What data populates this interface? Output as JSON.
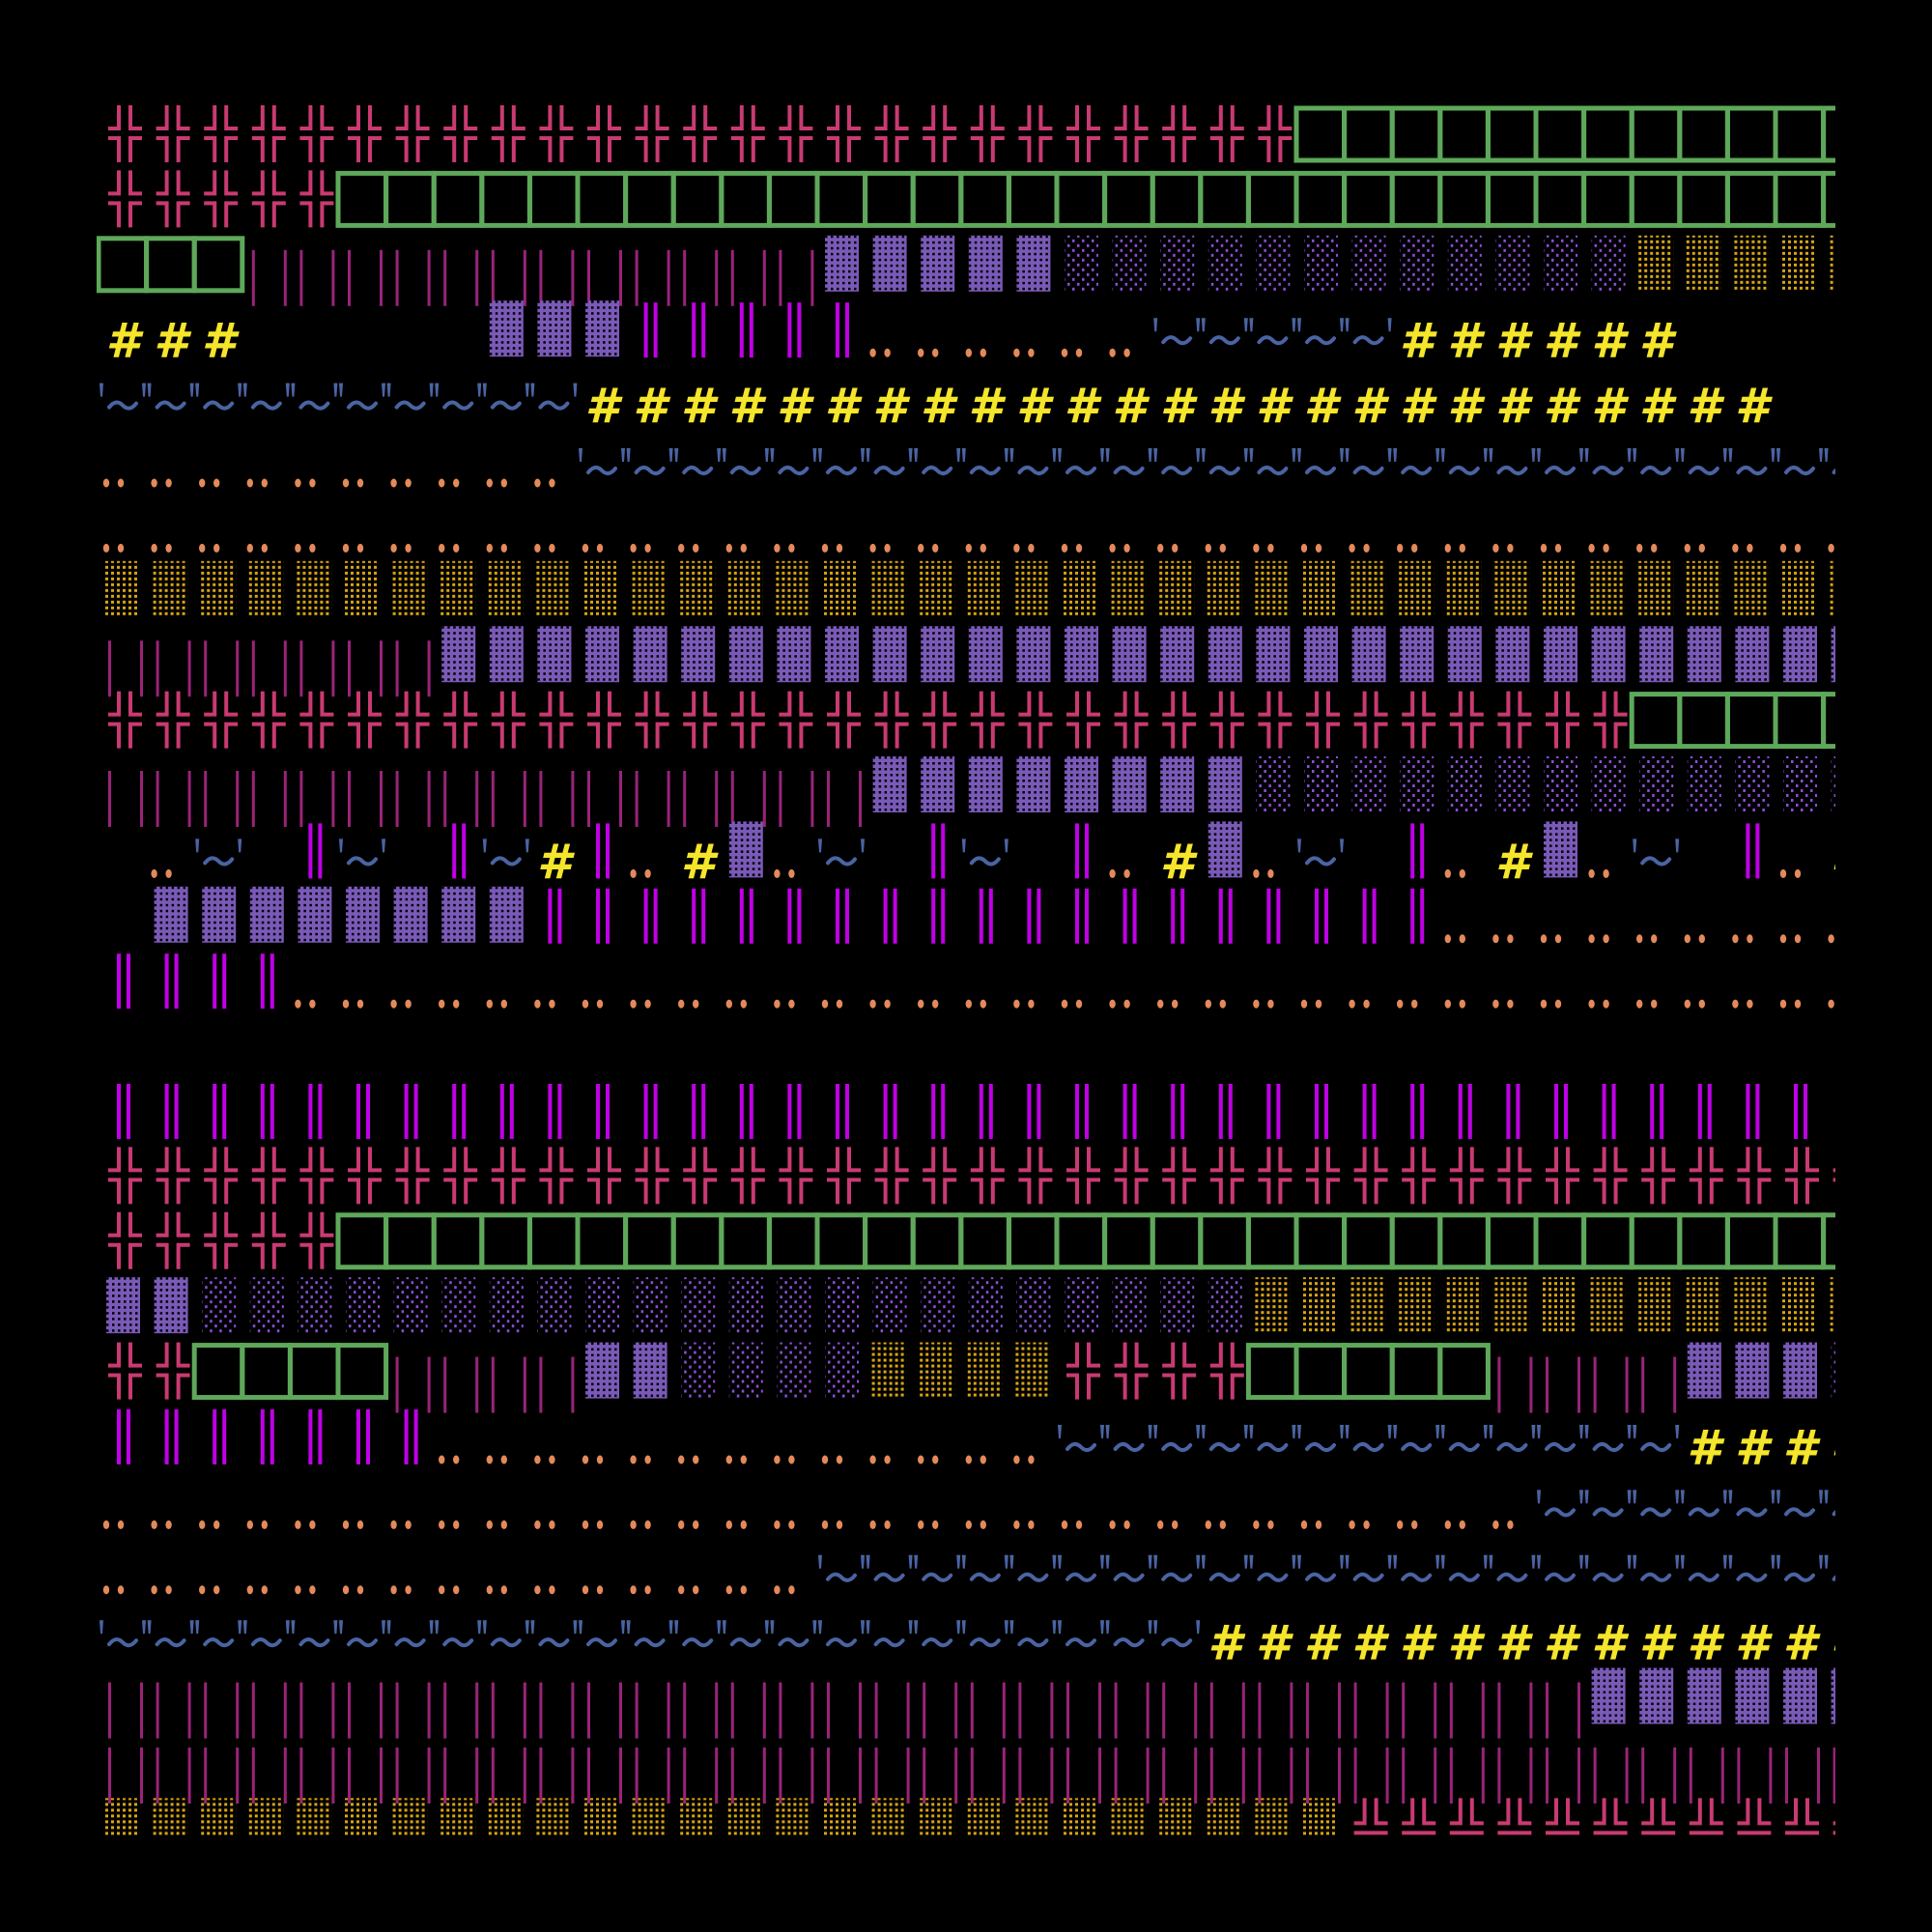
{
  "artwork": {
    "background": "#000000",
    "columns": 37,
    "legend": {
      "H": {
        "glyph": "╬",
        "name": "double-cross",
        "color": "#c93a72"
      },
      "T": {
        "glyph": "╩",
        "name": "double-tee-up",
        "color": "#c93a72"
      },
      "B": {
        "glyph": "□",
        "name": "box",
        "color": "#5ea85a"
      },
      "P": {
        "glyph": "¦",
        "name": "thin-bars",
        "color": "#9b2378"
      },
      "D": {
        "glyph": "▓",
        "name": "dense-shade",
        "color": "#7a5ab8"
      },
      "S": {
        "glyph": "░",
        "name": "light-shade",
        "color": "#8a4fd6"
      },
      "Y": {
        "glyph": "▒",
        "name": "medium-shade",
        "color": "#d9a514"
      },
      "#": {
        "glyph": "#",
        "name": "hash",
        "color": "#f5e52b"
      },
      "o": {
        "glyph": "‥",
        "name": "two-dots",
        "color": "#e4895a"
      },
      "W": {
        "glyph": "'~'",
        "name": "quote-tilde",
        "color": "#4a64a3"
      },
      "V": {
        "glyph": "║",
        "name": "double-bar",
        "color": "#c000e6"
      }
    },
    "rows": [
      "HHHHHHHHHHHHHHHHHHHHHHHHHBBBBBBBBBBBB",
      "HHHHHBBBBBBBBBBBBBBBBBBBBBBBBBBBBBBBB",
      "BBBPPPPPPPPPPPPDDDDDSSSSSSSSSSSSYYYYY",
      "###     DDDVVVVVooooooWWWWW######    ",
      "WWWWWWWWWW#########################  ",
      "ooooooooooWWWWWWWWWWWWWWWWWWWWWWWWWWW",
      "ooooooooooooooooooooooooooooooooooooo",
      "YYYYYYYYYYYYYYYYYYYYYYYYYYYYYYYYYYYYY",
      "PPPPPPPDDDDDDDDDDDDDDDDDDDDDDDDDDDDDD",
      "HHHHHHHHHHHHHHHHHHHHHHHHHHHHHHHHBBBBB",
      "PPPPPPPPPPPPPPPPDDDDDDDDSSSSSSSSSSSSS",
      " oW VW VW#Vo#DoW VW Vo#DoW Vo#DoW Vo#",
      " DDDDDDDDVVVVVVVVVVVVVVVVVVVooooooooo",
      "VVVVooooooooooooooooooooooooooooooooo",
      "                                     ",
      "VVVVVVVVVVVVVVVVVVVVVVVVVVVVVVVVVVVV ",
      "HHHHHHHHHHHHHHHHHHHHHHHHHHHHHHHHHHHHH",
      "HHHHHBBBBBBBBBBBBBBBBBBBBBBBBBBBBBBBB",
      "DDSSSSSSSSSSSSSSSSSSSSSSYYYYYYYYYYYYY",
      "HHBBBBPPPPDDSSSSYYYYHHHHBBBBBPPPPDDDS",
      "VVVVVVVoooooooooooooWWWWWWWWWWWWW####",
      "ooooooooooooooooooooooooooooooWWWWWWW",
      "oooooooooooooooWWWWWWWWWWWWWWWWWWWWWW",
      "WWWWWWWWWWWWWWWWWWWWWWW##############",
      "PPPPPPPPPPPPPPPPPPPPPPPPPPPPPPPDDDDDD",
      "PPPPPPPPPPPPPPPPPPPPPPPPPPPPPPPPPPPPP",
      "YYYYYYYYYYYYYYYYYYYYYYYYYYTTTTTTTTTTT"
    ]
  }
}
